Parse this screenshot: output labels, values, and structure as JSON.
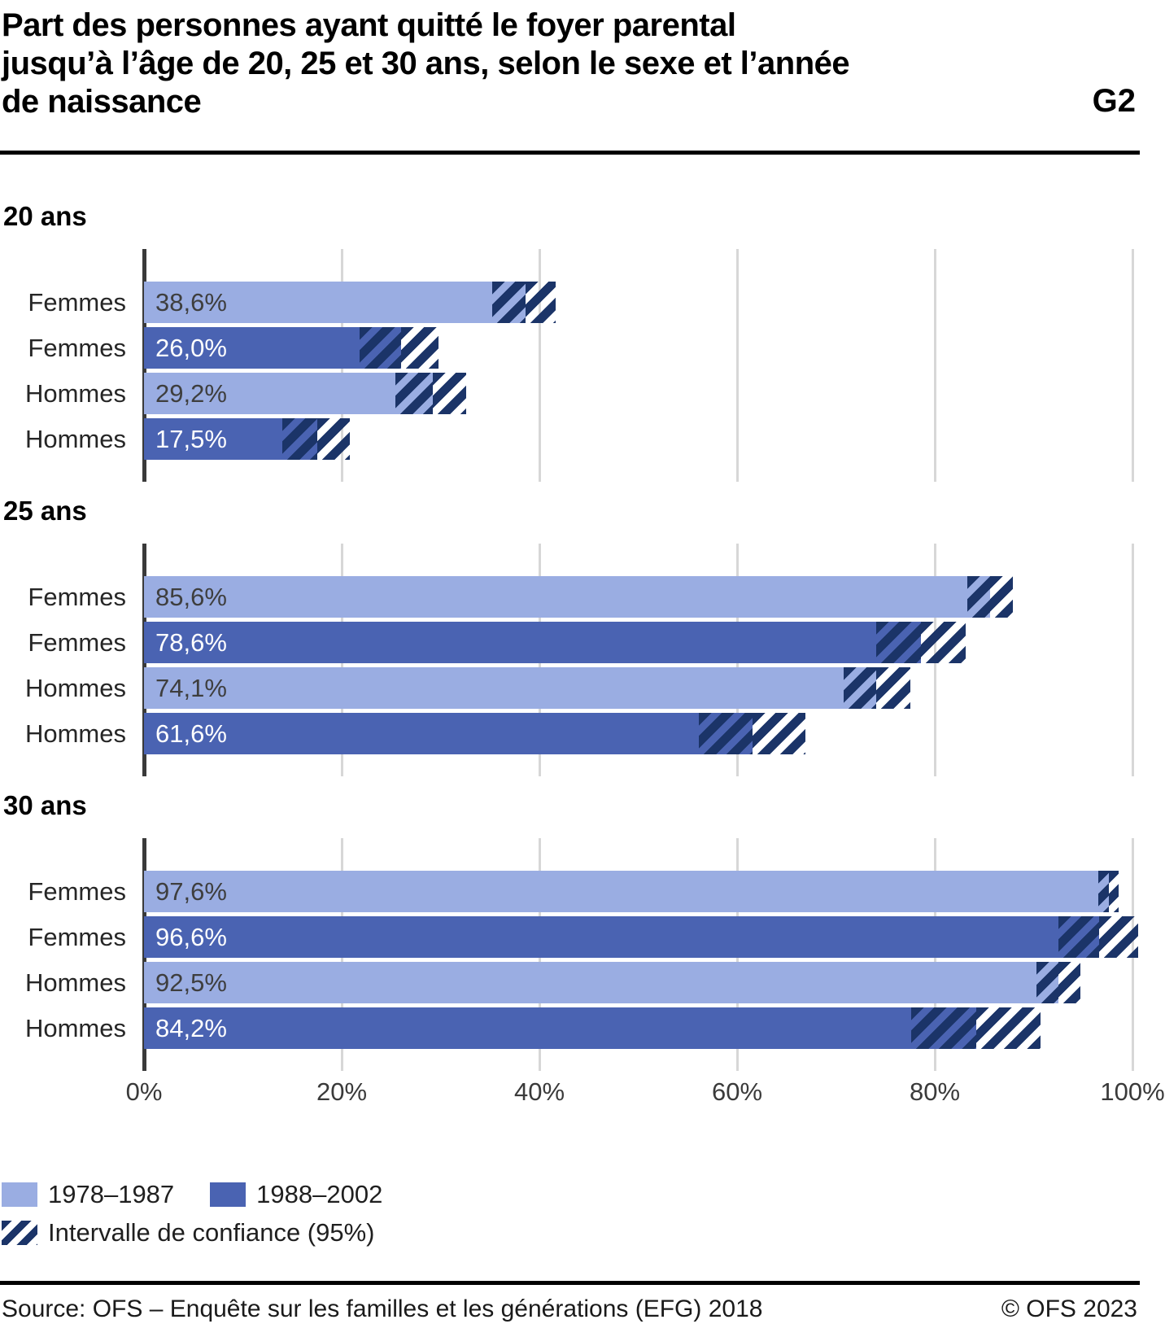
{
  "title": {
    "lines": [
      "Part des personnes ayant quitté le foyer parental",
      "jusqu’à l’âge de 20, 25 et 30 ans, selon le sexe et l’année",
      "de naissance"
    ],
    "tag": "G2"
  },
  "chart_data": {
    "type": "bar",
    "orientation": "horizontal",
    "value_unit": "%",
    "xlim": [
      0,
      100
    ],
    "grid": true,
    "x_ticks": [
      {
        "label": "0%",
        "value": 0
      },
      {
        "label": "20%",
        "value": 20
      },
      {
        "label": "40%",
        "value": 40
      },
      {
        "label": "60%",
        "value": 60
      },
      {
        "label": "80%",
        "value": 80
      },
      {
        "label": "100%",
        "value": 100
      }
    ],
    "series": [
      {
        "name": "1978–1987",
        "color": "#9AADE2",
        "value_text_color": "#3E3E3E"
      },
      {
        "name": "1988–2002",
        "color": "#4A63B2",
        "value_text_color": "#FFFFFF"
      }
    ],
    "ci_color": "#1B3468",
    "ci_note": "Intervalle de confiance (95%)",
    "groups": [
      {
        "label": "20 ans",
        "bars": [
          {
            "label": "Femmes",
            "cohort": "1978–1987",
            "value": 38.6,
            "value_label": "38,6%",
            "ci": [
              35.2,
              41.6
            ]
          },
          {
            "label": "Femmes",
            "cohort": "1988–2002",
            "value": 26.0,
            "value_label": "26,0%",
            "ci": [
              21.8,
              29.8
            ]
          },
          {
            "label": "Hommes",
            "cohort": "1978–1987",
            "value": 29.2,
            "value_label": "29,2%",
            "ci": [
              25.4,
              32.6
            ]
          },
          {
            "label": "Hommes",
            "cohort": "1988–2002",
            "value": 17.5,
            "value_label": "17,5%",
            "ci": [
              14.0,
              20.8
            ]
          }
        ]
      },
      {
        "label": "25 ans",
        "bars": [
          {
            "label": "Femmes",
            "cohort": "1978–1987",
            "value": 85.6,
            "value_label": "85,6%",
            "ci": [
              83.3,
              87.9
            ]
          },
          {
            "label": "Femmes",
            "cohort": "1988–2002",
            "value": 78.6,
            "value_label": "78,6%",
            "ci": [
              74.1,
              83.1
            ]
          },
          {
            "label": "Hommes",
            "cohort": "1978–1987",
            "value": 74.1,
            "value_label": "74,1%",
            "ci": [
              70.8,
              77.5
            ]
          },
          {
            "label": "Hommes",
            "cohort": "1988–2002",
            "value": 61.6,
            "value_label": "61,6%",
            "ci": [
              56.1,
              66.9
            ]
          }
        ]
      },
      {
        "label": "30 ans",
        "bars": [
          {
            "label": "Femmes",
            "cohort": "1978–1987",
            "value": 97.6,
            "value_label": "97,6%",
            "ci": [
              96.5,
              98.6
            ]
          },
          {
            "label": "Femmes",
            "cohort": "1988–2002",
            "value": 96.6,
            "value_label": "96,6%",
            "ci": [
              92.5,
              100.6
            ]
          },
          {
            "label": "Hommes",
            "cohort": "1978–1987",
            "value": 92.5,
            "value_label": "92,5%",
            "ci": [
              90.3,
              94.7
            ]
          },
          {
            "label": "Hommes",
            "cohort": "1988–2002",
            "value": 84.2,
            "value_label": "84,2%",
            "ci": [
              77.6,
              90.7
            ]
          }
        ]
      }
    ]
  },
  "legend": {
    "items": [
      {
        "label": "1978–1987",
        "swatch": "solid-light"
      },
      {
        "label": "1988–2002",
        "swatch": "solid-dark"
      },
      {
        "label": "Intervalle de confiance (95%)",
        "swatch": "hatch"
      }
    ]
  },
  "footer": {
    "source": "Source: OFS – Enquête sur les familles et les générations (EFG) 2018",
    "copyright": "© OFS 2023"
  }
}
